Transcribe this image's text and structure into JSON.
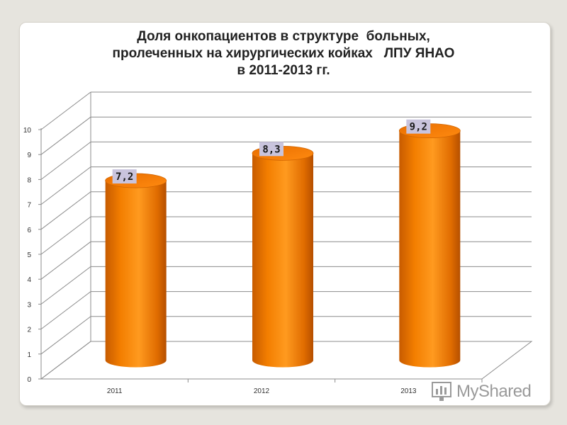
{
  "title": {
    "line1": "Доля онкопациентов в структуре  больных,",
    "line2": "пролеченных на хирургических койках   ЛПУ ЯНАО",
    "line3": "в 2011-2013 гг."
  },
  "chart_data": {
    "type": "bar",
    "style": "3d-cylinder",
    "categories": [
      "2011",
      "2012",
      "2013"
    ],
    "values": [
      7.2,
      8.3,
      9.2
    ],
    "data_labels": [
      "7,2",
      "8,3",
      "9,2"
    ],
    "yticks": [
      "0",
      "1",
      "2",
      "3",
      "4",
      "5",
      "6",
      "7",
      "8",
      "9",
      "10"
    ],
    "ylim": [
      0,
      10
    ],
    "grid": true,
    "legend": "none",
    "bar_color": "#f07d00",
    "bar_highlight": "#ff9a22",
    "bar_shadow": "#c45a00",
    "label_bg": "#c9c4dd"
  },
  "watermark": {
    "text": "MyShared"
  }
}
